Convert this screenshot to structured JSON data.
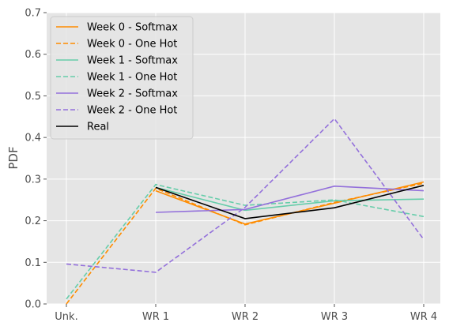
{
  "chart_data": {
    "type": "line",
    "categories": [
      "Unk.",
      "WR 1",
      "WR 2",
      "WR 3",
      "WR 4"
    ],
    "xlabel": "",
    "ylabel": "PDF",
    "ylim": [
      0,
      0.7
    ],
    "yticks": [
      "0.0",
      "0.1",
      "0.2",
      "0.3",
      "0.4",
      "0.5",
      "0.6",
      "0.7"
    ],
    "grid": true,
    "legend_position": "top-left",
    "series": [
      {
        "name": "Week 0 - Softmax",
        "color": "#ff8c00",
        "style": "solid",
        "values": [
          null,
          0.272,
          0.192,
          0.242,
          0.293
        ]
      },
      {
        "name": "Week 0 - One Hot",
        "color": "#ff8c00",
        "style": "dashed",
        "values": [
          0.0,
          0.278,
          0.19,
          0.244,
          0.29
        ]
      },
      {
        "name": "Week 1 - Softmax",
        "color": "#66cdaa",
        "style": "solid",
        "values": [
          null,
          0.28,
          0.225,
          0.248,
          0.252
        ]
      },
      {
        "name": "Week 1 - One Hot",
        "color": "#66cdaa",
        "style": "dashed",
        "values": [
          0.012,
          0.287,
          0.237,
          0.25,
          0.21
        ]
      },
      {
        "name": "Week 2 - Softmax",
        "color": "#9370db",
        "style": "solid",
        "values": [
          null,
          0.22,
          0.227,
          0.283,
          0.272
        ]
      },
      {
        "name": "Week 2 - One Hot",
        "color": "#9370db",
        "style": "dashed",
        "values": [
          0.096,
          0.076,
          0.232,
          0.445,
          0.155
        ]
      },
      {
        "name": "Real",
        "color": "#000000",
        "style": "solid",
        "values": [
          null,
          0.28,
          0.205,
          0.231,
          0.285
        ]
      }
    ]
  }
}
